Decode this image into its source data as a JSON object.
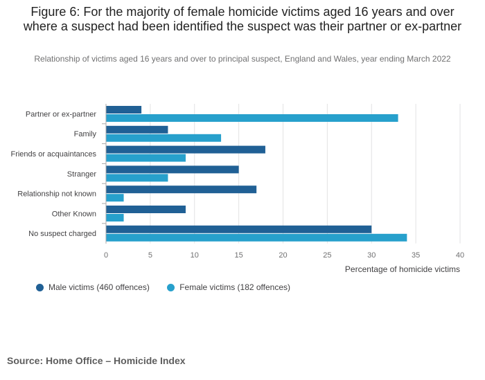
{
  "chart_data": {
    "type": "bar",
    "orientation": "horizontal",
    "title": "Figure 6: For the majority of female homicide victims aged 16 years and over where a suspect had been identified the suspect was their partner or ex-partner",
    "subtitle": "Relationship of victims aged 16 years and over to principal suspect, England and Wales, year ending March 2022",
    "categories": [
      "Partner or ex-partner",
      "Family",
      "Friends or acquaintances",
      "Stranger",
      "Relationship not known",
      "Other Known",
      "No suspect charged"
    ],
    "series": [
      {
        "name": "Male victims (460 offences)",
        "color": "#206095",
        "values": [
          4,
          7,
          18,
          15,
          17,
          9,
          30
        ]
      },
      {
        "name": "Female victims (182 offences)",
        "color": "#27a0cc",
        "values": [
          33,
          13,
          9,
          7,
          2,
          2,
          34
        ]
      }
    ],
    "xlabel": "Percentage of homicide victims",
    "ylabel": "",
    "xlim": [
      0,
      40
    ],
    "xticks": [
      0,
      5,
      10,
      15,
      20,
      25,
      30,
      35,
      40
    ],
    "grid": true,
    "legend_position": "bottom-left"
  },
  "source": "Source: Home Office – Homicide Index"
}
